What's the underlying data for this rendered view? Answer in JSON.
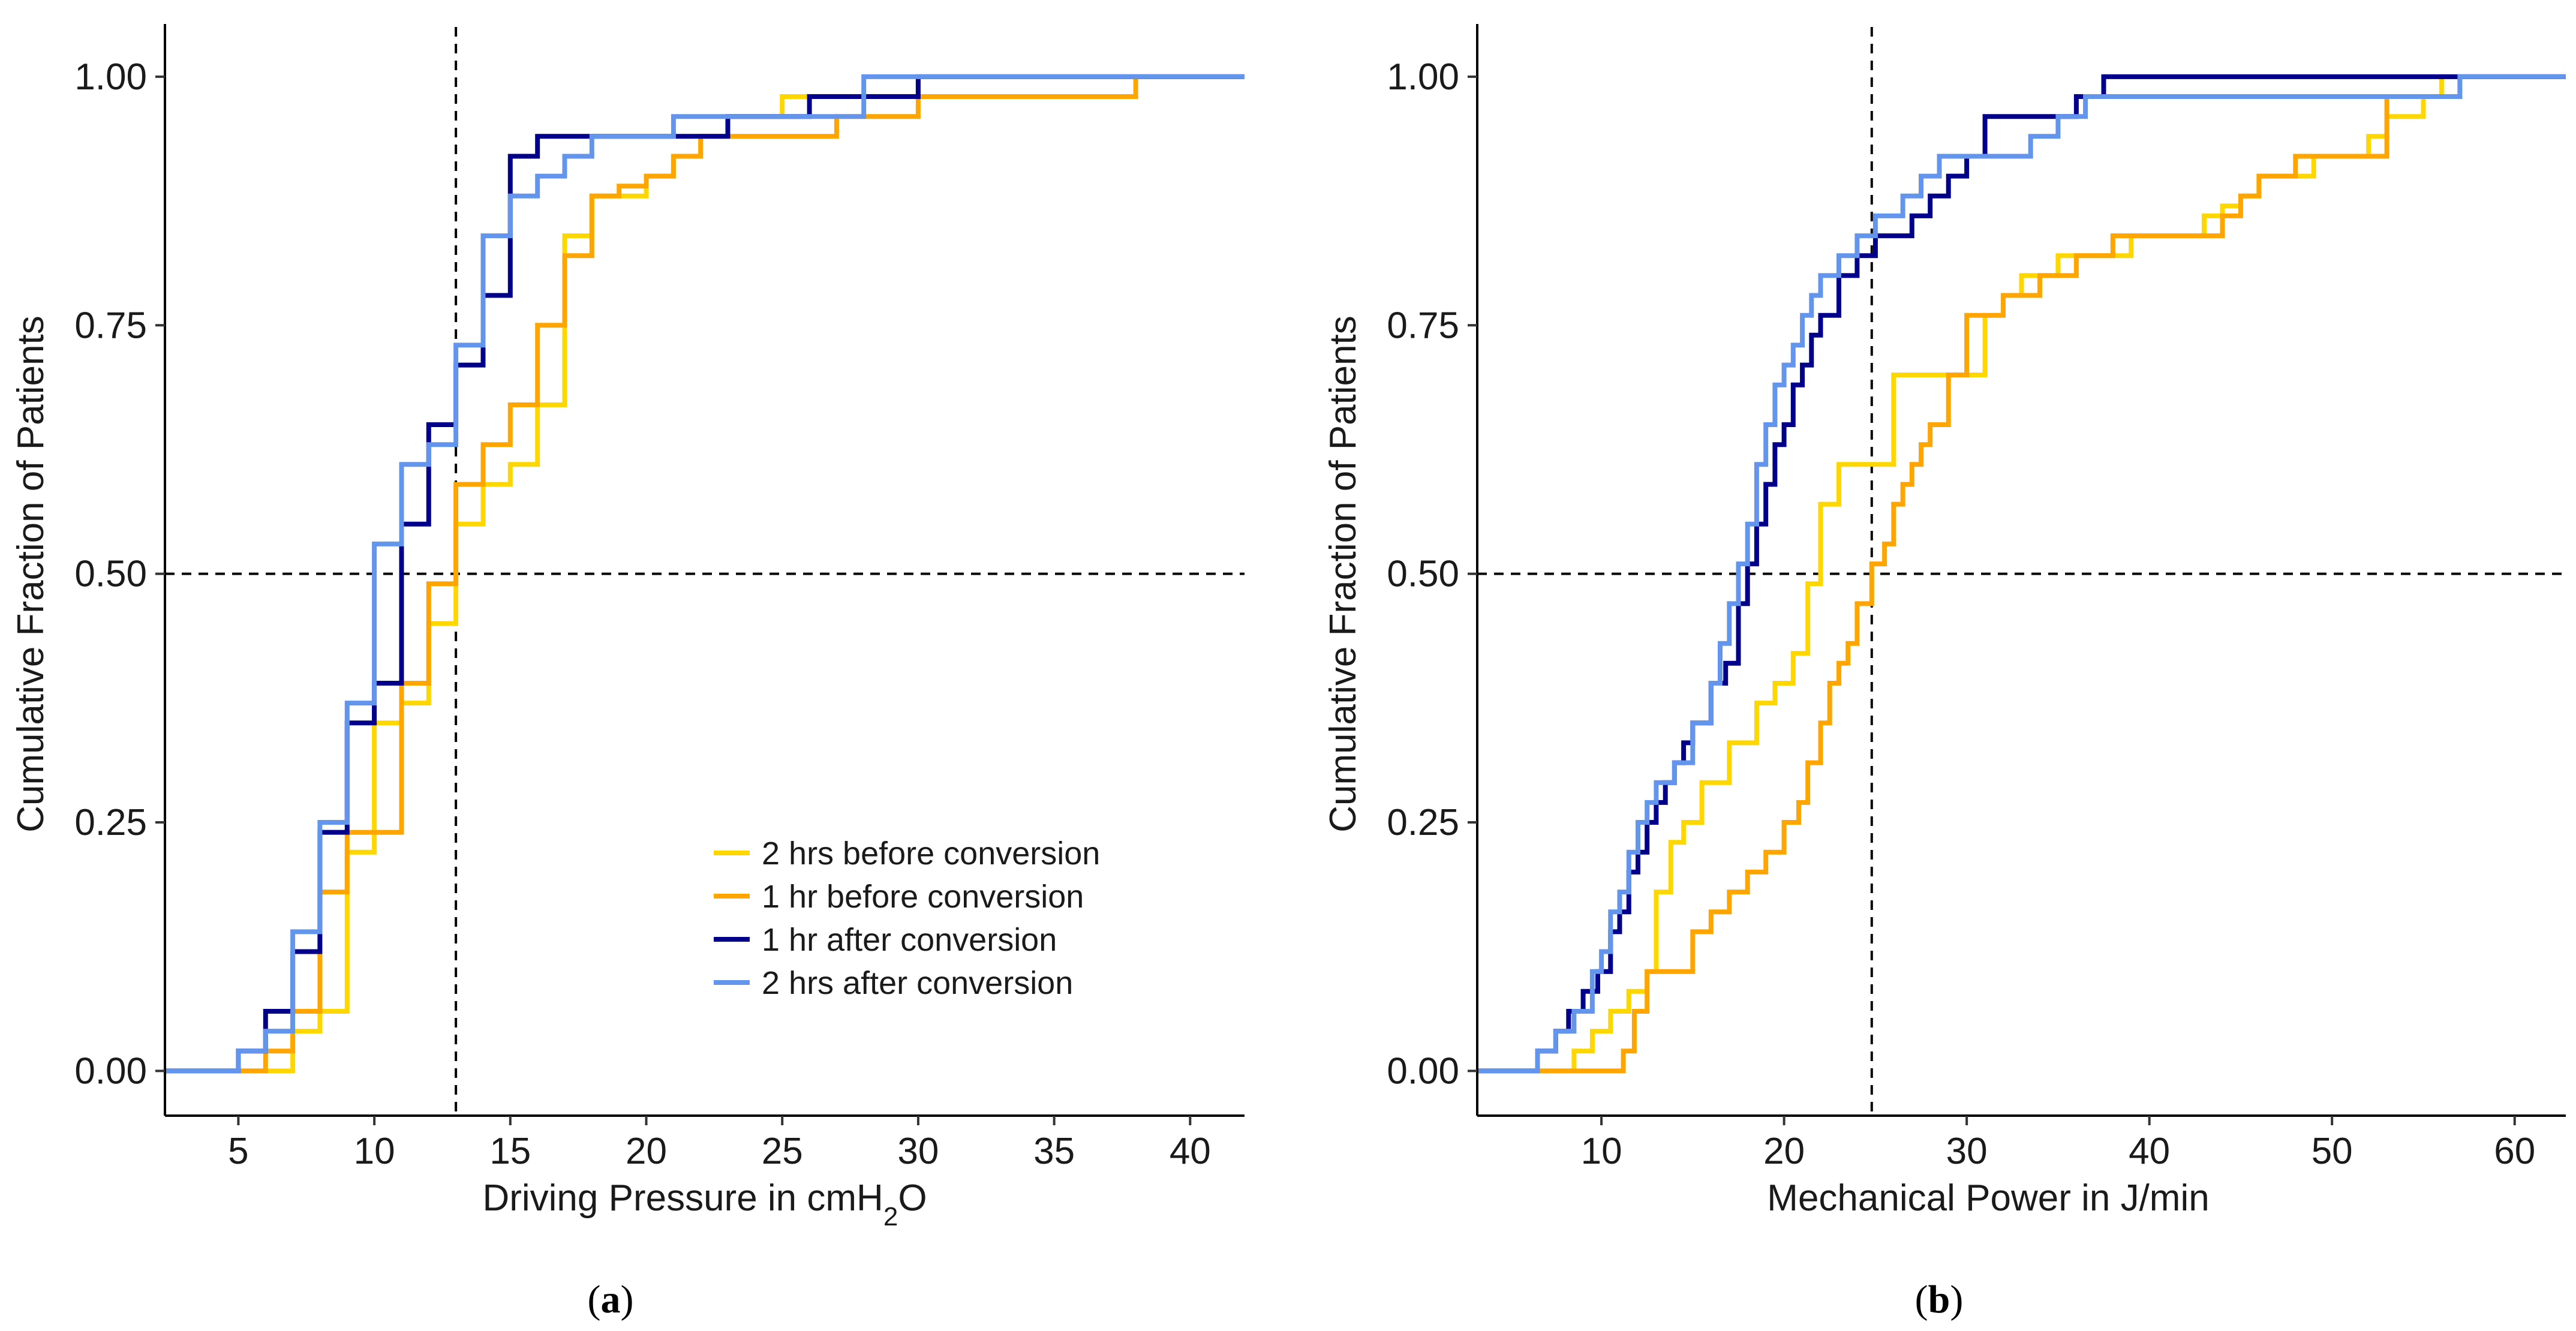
{
  "chart_data": [
    {
      "type": "line",
      "step": true,
      "panel": "a",
      "caption_open": "(",
      "caption_letter": "a",
      "caption_close": ")",
      "title": "",
      "xlabel_main": "Driving Pressure in cmH",
      "xlabel_sub": "2",
      "xlabel_tail": "O",
      "ylabel": "Cumulative Fraction of Patients",
      "xlim": [
        2.3,
        42
      ],
      "ylim": [
        -0.045,
        1.05
      ],
      "xticks": [
        "5",
        "10",
        "15",
        "20",
        "25",
        "30",
        "35",
        "40"
      ],
      "xtick_values": [
        5,
        10,
        15,
        20,
        25,
        30,
        35,
        40
      ],
      "yticks": [
        "0.00",
        "0.25",
        "0.50",
        "0.75",
        "1.00"
      ],
      "ytick_values": [
        0,
        0.25,
        0.5,
        0.75,
        1.0
      ],
      "ref_x": 13,
      "ref_y": 0.5,
      "legend": {
        "placement": "bottom-right",
        "entries": [
          "2 hrs before conversion",
          "1 hr before conversion",
          "1 hr after conversion",
          "2 hrs after conversion"
        ]
      },
      "series": [
        {
          "name": "2 hrs before conversion",
          "color": "#ffd700",
          "x": [
            2.3,
            7,
            8,
            9,
            10,
            11,
            12,
            13,
            14,
            15,
            16,
            17,
            18,
            19,
            20,
            21,
            22,
            23,
            25,
            26,
            28,
            30,
            42
          ],
          "y": [
            0,
            0.04,
            0.06,
            0.22,
            0.35,
            0.37,
            0.45,
            0.55,
            0.59,
            0.61,
            0.67,
            0.84,
            0.88,
            0.88,
            0.9,
            0.92,
            0.94,
            0.96,
            0.98,
            0.98,
            0.98,
            1.0,
            1.0
          ]
        },
        {
          "name": "1 hr before conversion",
          "color": "#ffa500",
          "x": [
            2.3,
            6,
            7,
            8,
            9,
            11,
            12,
            13,
            14,
            15,
            16,
            17,
            18,
            19,
            20,
            21,
            22,
            23,
            27,
            30,
            38,
            42
          ],
          "y": [
            0,
            0.02,
            0.06,
            0.18,
            0.24,
            0.39,
            0.49,
            0.59,
            0.63,
            0.67,
            0.75,
            0.82,
            0.88,
            0.89,
            0.9,
            0.92,
            0.94,
            0.94,
            0.96,
            0.98,
            1.0,
            1.0
          ]
        },
        {
          "name": "1 hr after conversion",
          "color": "#00008b",
          "x": [
            2.3,
            5,
            6,
            7,
            8,
            9,
            10,
            11,
            12,
            13,
            14,
            15,
            16,
            17,
            18,
            22,
            23,
            26,
            28,
            30,
            42
          ],
          "y": [
            0,
            0.02,
            0.06,
            0.12,
            0.24,
            0.35,
            0.39,
            0.55,
            0.65,
            0.71,
            0.78,
            0.92,
            0.94,
            0.94,
            0.94,
            0.94,
            0.96,
            0.98,
            0.98,
            1.0,
            1.0
          ]
        },
        {
          "name": "2 hrs after conversion",
          "color": "#6495ed",
          "x": [
            2.3,
            5,
            6,
            7,
            8,
            9,
            10,
            11,
            12,
            13,
            14,
            15,
            16,
            17,
            18,
            19,
            21,
            25,
            28,
            42
          ],
          "y": [
            0,
            0.02,
            0.04,
            0.14,
            0.25,
            0.37,
            0.53,
            0.61,
            0.63,
            0.73,
            0.84,
            0.88,
            0.9,
            0.92,
            0.94,
            0.94,
            0.96,
            0.96,
            1.0,
            1.0
          ]
        }
      ]
    },
    {
      "type": "line",
      "step": true,
      "panel": "b",
      "caption_open": "(",
      "caption_letter": "b",
      "caption_close": ")",
      "title": "",
      "xlabel": "Mechanical Power in J/min",
      "ylabel": "Cumulative Fraction of Patients",
      "xlim": [
        3.2,
        62.8
      ],
      "ylim": [
        -0.045,
        1.05
      ],
      "xticks": [
        "10",
        "20",
        "30",
        "40",
        "50",
        "60"
      ],
      "xtick_values": [
        10,
        20,
        30,
        40,
        50,
        60
      ],
      "yticks": [
        "0.00",
        "0.25",
        "0.50",
        "0.75",
        "1.00"
      ],
      "ytick_values": [
        0,
        0.25,
        0.5,
        0.75,
        1.0
      ],
      "ref_x": 24.8,
      "ref_y": 0.5,
      "series": [
        {
          "name": "2 hrs before conversion",
          "color": "#ffd700",
          "x": [
            3.2,
            8.5,
            9.5,
            10.5,
            11.5,
            12.5,
            13,
            13.8,
            14.5,
            15.5,
            17,
            18.5,
            19.5,
            20.5,
            21.3,
            22,
            23,
            25,
            26,
            28,
            30,
            31,
            32,
            33,
            35,
            37,
            39,
            41,
            43,
            44,
            45,
            46,
            47,
            49,
            51,
            52,
            53,
            55,
            56,
            62.8
          ],
          "y": [
            0,
            0.02,
            0.04,
            0.06,
            0.08,
            0.1,
            0.18,
            0.23,
            0.25,
            0.29,
            0.33,
            0.37,
            0.39,
            0.42,
            0.49,
            0.57,
            0.61,
            0.61,
            0.7,
            0.7,
            0.7,
            0.76,
            0.78,
            0.8,
            0.82,
            0.82,
            0.84,
            0.84,
            0.86,
            0.87,
            0.88,
            0.9,
            0.9,
            0.92,
            0.92,
            0.94,
            0.96,
            0.98,
            1.0,
            1.0
          ]
        },
        {
          "name": "1 hr before conversion",
          "color": "#ffa500",
          "x": [
            3.2,
            11.2,
            11.8,
            12.5,
            15,
            16,
            17,
            18,
            19,
            20,
            20.8,
            21.3,
            22,
            22.5,
            23,
            23.5,
            24,
            24.8,
            25.5,
            26,
            26.5,
            27,
            27.5,
            28,
            29,
            30,
            31,
            32,
            34,
            35,
            36,
            38,
            40,
            42,
            44,
            45,
            46,
            48,
            53,
            55,
            57,
            62.8
          ],
          "y": [
            0,
            0.02,
            0.06,
            0.1,
            0.14,
            0.16,
            0.18,
            0.2,
            0.22,
            0.25,
            0.27,
            0.31,
            0.35,
            0.39,
            0.41,
            0.43,
            0.47,
            0.51,
            0.53,
            0.57,
            0.59,
            0.61,
            0.63,
            0.65,
            0.7,
            0.76,
            0.76,
            0.78,
            0.8,
            0.8,
            0.82,
            0.84,
            0.84,
            0.84,
            0.86,
            0.88,
            0.9,
            0.92,
            0.98,
            0.98,
            1.0,
            1.0
          ]
        },
        {
          "name": "1 hr after conversion",
          "color": "#00008b",
          "x": [
            3.2,
            6.5,
            7.5,
            8.2,
            9,
            9.8,
            10.5,
            11,
            11.5,
            12,
            12.5,
            13,
            13.5,
            14,
            14.5,
            15,
            16,
            16.8,
            17.5,
            18,
            18.5,
            19,
            19.5,
            20,
            20.5,
            21,
            21.5,
            22,
            23,
            24,
            25,
            26,
            27,
            28,
            29,
            30,
            31,
            32,
            33,
            34,
            36,
            37.5,
            57,
            62.8
          ],
          "y": [
            0,
            0.02,
            0.04,
            0.06,
            0.08,
            0.1,
            0.14,
            0.16,
            0.2,
            0.22,
            0.25,
            0.27,
            0.29,
            0.31,
            0.33,
            0.35,
            0.39,
            0.41,
            0.47,
            0.51,
            0.55,
            0.59,
            0.63,
            0.65,
            0.69,
            0.71,
            0.74,
            0.76,
            0.8,
            0.82,
            0.84,
            0.84,
            0.86,
            0.88,
            0.9,
            0.92,
            0.96,
            0.96,
            0.96,
            0.96,
            0.98,
            1.0,
            1.0,
            1.0
          ]
        },
        {
          "name": "2 hrs after conversion",
          "color": "#6495ed",
          "x": [
            3.2,
            6.5,
            7.5,
            8.5,
            9.5,
            10,
            10.5,
            11,
            11.5,
            12,
            12.5,
            13,
            13.5,
            14,
            15,
            16,
            16.5,
            17,
            17.5,
            18,
            18.5,
            19,
            19.5,
            20,
            20.5,
            21,
            21.5,
            22,
            23,
            24,
            25,
            26,
            26.5,
            27.5,
            28.5,
            32,
            33.5,
            35,
            36.5,
            57,
            62.8
          ],
          "y": [
            0,
            0.02,
            0.04,
            0.06,
            0.1,
            0.12,
            0.16,
            0.18,
            0.22,
            0.25,
            0.27,
            0.29,
            0.29,
            0.31,
            0.35,
            0.39,
            0.43,
            0.47,
            0.51,
            0.55,
            0.61,
            0.65,
            0.69,
            0.71,
            0.73,
            0.76,
            0.78,
            0.8,
            0.82,
            0.84,
            0.86,
            0.86,
            0.88,
            0.9,
            0.92,
            0.92,
            0.94,
            0.96,
            0.98,
            1.0,
            1.0
          ]
        }
      ]
    }
  ]
}
